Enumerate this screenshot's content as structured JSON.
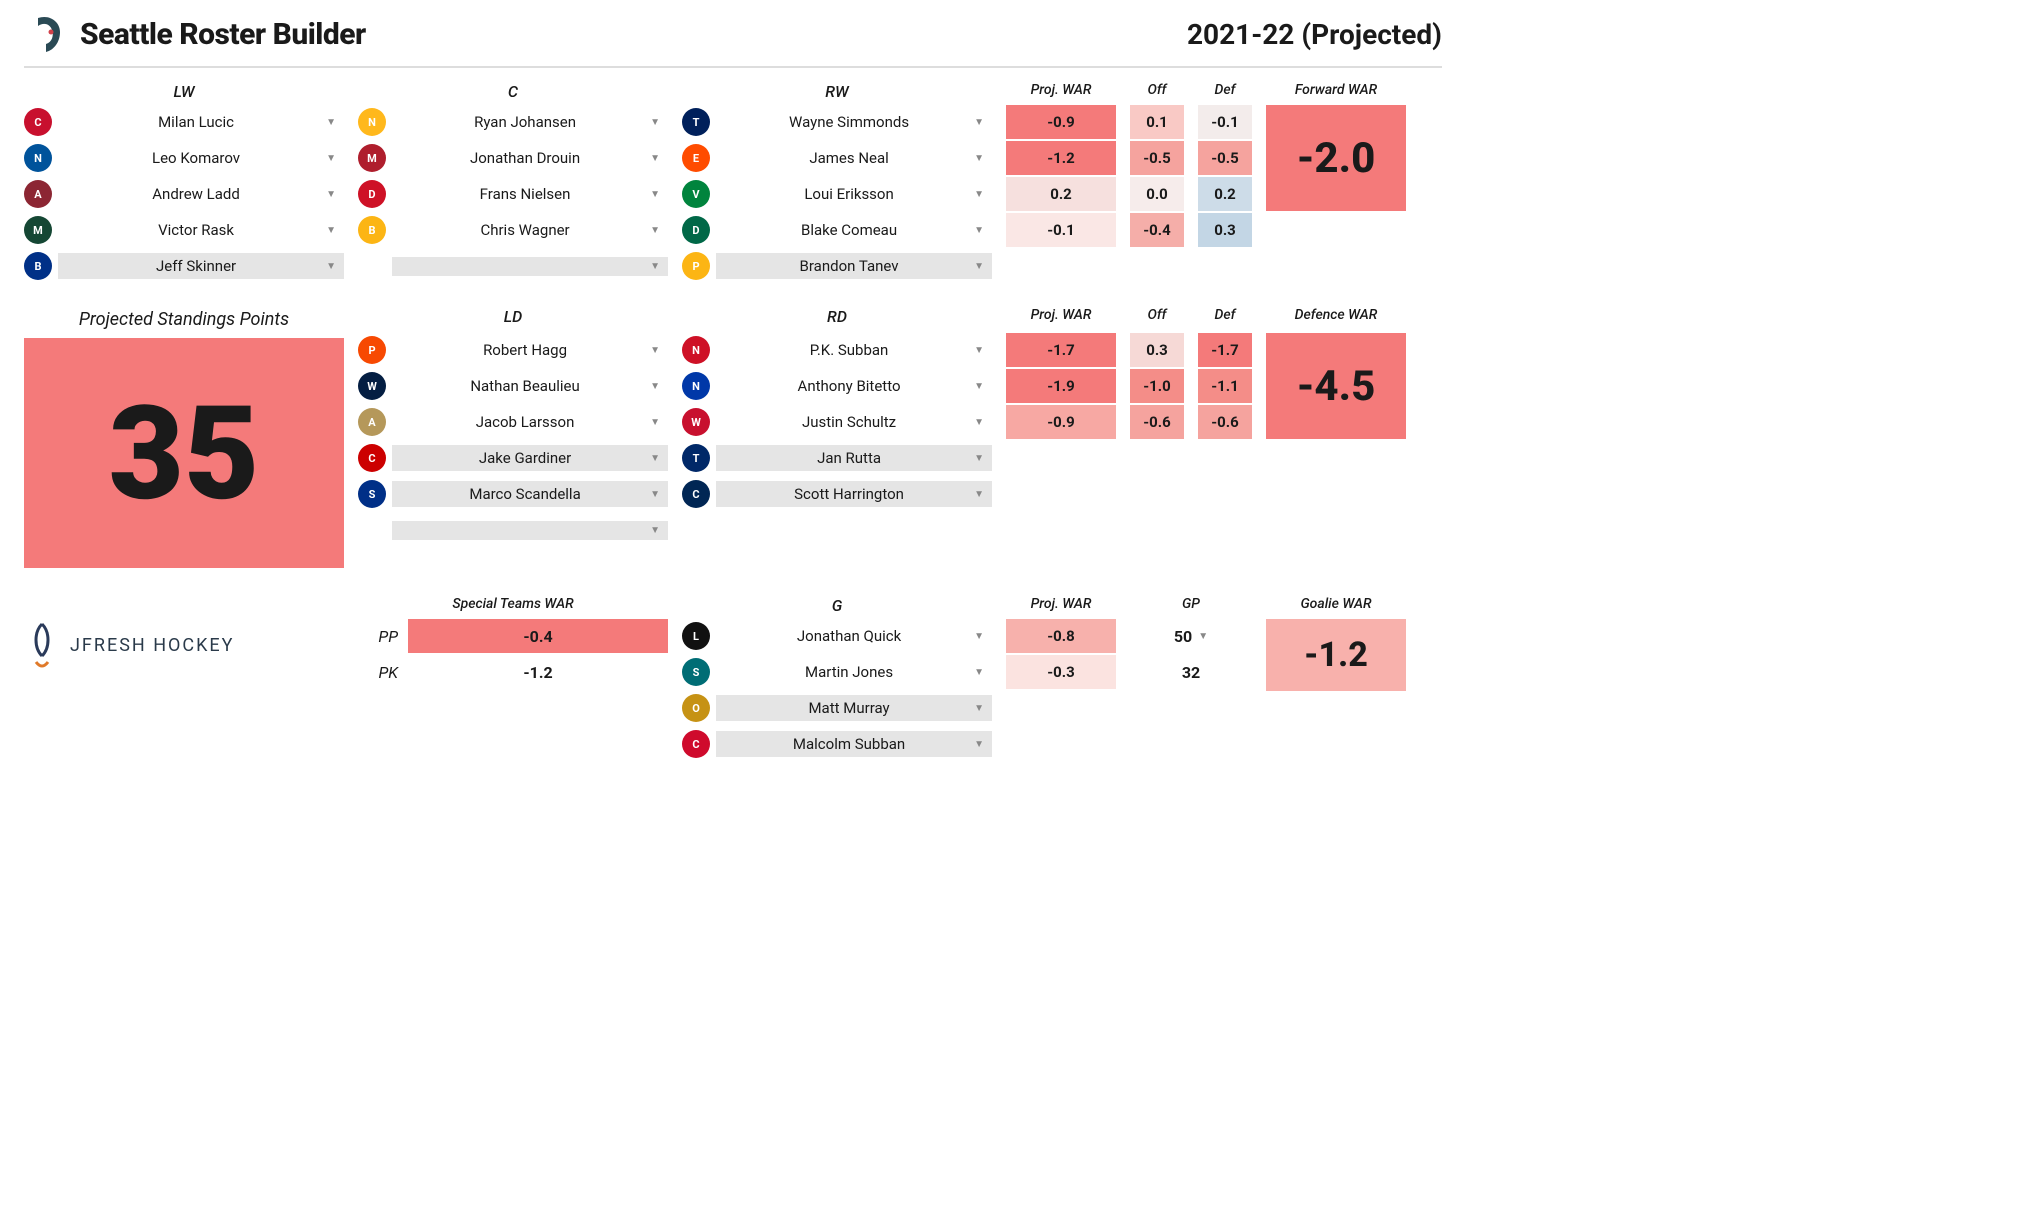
{
  "header": {
    "title": "Seattle Roster Builder",
    "season": "2021-22 (Projected)",
    "team_logo_color": "#5a9aa0"
  },
  "columns": {
    "lw": "LW",
    "c": "C",
    "rw": "RW",
    "ld": "LD",
    "rd": "RD",
    "g": "G",
    "proj_war": "Proj. WAR",
    "off": "Off",
    "def": "Def",
    "forward_war": "Forward WAR",
    "defence_war": "Defence WAR",
    "goalie_war": "Goalie WAR",
    "special_teams": "Special Teams WAR",
    "gp": "GP"
  },
  "forwards": {
    "lw": [
      {
        "name": "Milan Lucic",
        "team_color": "#c8102e",
        "team_txt": "CGY",
        "active": true
      },
      {
        "name": "Leo Komarov",
        "team_color": "#00539b",
        "team_txt": "NYI",
        "active": true
      },
      {
        "name": "Andrew Ladd",
        "team_color": "#8c2633",
        "team_txt": "ARI",
        "active": true
      },
      {
        "name": "Victor Rask",
        "team_color": "#154734",
        "team_txt": "MIN",
        "active": true
      },
      {
        "name": "Jeff Skinner",
        "team_color": "#003087",
        "team_txt": "BUF",
        "active": false
      }
    ],
    "c": [
      {
        "name": "Ryan Johansen",
        "team_color": "#ffb81c",
        "team_txt": "NSH",
        "active": true
      },
      {
        "name": "Jonathan Drouin",
        "team_color": "#af1e2d",
        "team_txt": "MTL",
        "active": true
      },
      {
        "name": "Frans Nielsen",
        "team_color": "#ce1126",
        "team_txt": "DET",
        "active": true
      },
      {
        "name": "Chris Wagner",
        "team_color": "#fcb514",
        "team_txt": "BOS",
        "active": true
      },
      {
        "name": "",
        "team_color": "",
        "team_txt": "",
        "active": false
      }
    ],
    "rw": [
      {
        "name": "Wayne Simmonds",
        "team_color": "#00205b",
        "team_txt": "TOR",
        "active": true
      },
      {
        "name": "James Neal",
        "team_color": "#ff4c00",
        "team_txt": "EDM",
        "active": true
      },
      {
        "name": "Loui Eriksson",
        "team_color": "#00843d",
        "team_txt": "VAN",
        "active": true
      },
      {
        "name": "Blake Comeau",
        "team_color": "#006847",
        "team_txt": "DAL",
        "active": true
      },
      {
        "name": "Brandon Tanev",
        "team_color": "#fcb514",
        "team_txt": "PIT",
        "active": false
      }
    ],
    "stats": [
      {
        "proj_war": "-0.9",
        "proj_bg": "#f47a7a",
        "off": "0.1",
        "off_bg": "#f9c9c5",
        "def": "-0.1",
        "def_bg": "#f3eceb"
      },
      {
        "proj_war": "-1.2",
        "proj_bg": "#f47a7a",
        "off": "-0.5",
        "off_bg": "#f5a39e",
        "def": "-0.5",
        "def_bg": "#f5a39e"
      },
      {
        "proj_war": "0.2",
        "proj_bg": "#f6e0de",
        "off": "0.0",
        "off_bg": "#f6eceb",
        "def": "0.2",
        "def_bg": "#cddce8"
      },
      {
        "proj_war": "-0.1",
        "proj_bg": "#fae7e5",
        "off": "-0.4",
        "off_bg": "#f5aea9",
        "def": "0.3",
        "def_bg": "#c3d6e5"
      }
    ],
    "total_war": "-2.0",
    "total_bg": "#f47a7a"
  },
  "standings": {
    "label": "Projected Standings Points",
    "value": "35",
    "bg": "#f47a7a"
  },
  "defence": {
    "ld": [
      {
        "name": "Robert Hagg",
        "team_color": "#f74902",
        "team_txt": "PHI",
        "active": true
      },
      {
        "name": "Nathan Beaulieu",
        "team_color": "#041e42",
        "team_txt": "WPG",
        "active": true
      },
      {
        "name": "Jacob Larsson",
        "team_color": "#b5985a",
        "team_txt": "ANA",
        "active": true
      },
      {
        "name": "Jake Gardiner",
        "team_color": "#cc0000",
        "team_txt": "CAR",
        "active": false
      },
      {
        "name": "Marco Scandella",
        "team_color": "#002f87",
        "team_txt": "STL",
        "active": false
      },
      {
        "name": "",
        "team_color": "",
        "team_txt": "",
        "active": false
      }
    ],
    "rd": [
      {
        "name": "P.K. Subban",
        "team_color": "#ce1126",
        "team_txt": "NJD",
        "active": true
      },
      {
        "name": "Anthony Bitetto",
        "team_color": "#0038a8",
        "team_txt": "NYR",
        "active": true
      },
      {
        "name": "Justin Schultz",
        "team_color": "#c8102e",
        "team_txt": "WSH",
        "active": true
      },
      {
        "name": "Jan Rutta",
        "team_color": "#002868",
        "team_txt": "TBL",
        "active": false
      },
      {
        "name": "Scott Harrington",
        "team_color": "#002654",
        "team_txt": "CBJ",
        "active": false
      }
    ],
    "stats": [
      {
        "proj_war": "-1.7",
        "proj_bg": "#f47a7a",
        "off": "0.3",
        "off_bg": "#f6d9d6",
        "def": "-1.7",
        "def_bg": "#f47a7a"
      },
      {
        "proj_war": "-1.9",
        "proj_bg": "#f47a7a",
        "off": "-1.0",
        "off_bg": "#f48d88",
        "def": "-1.1",
        "def_bg": "#f48d88"
      },
      {
        "proj_war": "-0.9",
        "proj_bg": "#f7a8a3",
        "off": "-0.6",
        "off_bg": "#f5a39e",
        "def": "-0.6",
        "def_bg": "#f5a39e"
      }
    ],
    "total_war": "-4.5",
    "total_bg": "#f47a7a"
  },
  "special_teams": {
    "pp_label": "PP",
    "pp_val": "-0.4",
    "pp_bg": "#f47a7a",
    "pk_label": "PK",
    "pk_val": "-1.2",
    "pk_bg": "#ffffff"
  },
  "goalies": {
    "list": [
      {
        "name": "Jonathan Quick",
        "team_color": "#111111",
        "team_txt": "LAK",
        "active": true,
        "proj_war": "-0.8",
        "proj_bg": "#f7b1ac",
        "gp": "50",
        "gp_dd": true
      },
      {
        "name": "Martin Jones",
        "team_color": "#006d75",
        "team_txt": "SJS",
        "active": true,
        "proj_war": "-0.3",
        "proj_bg": "#fbe3e0",
        "gp": "32",
        "gp_dd": false
      },
      {
        "name": "Matt Murray",
        "team_color": "#c69214",
        "team_txt": "OTT",
        "active": false
      },
      {
        "name": "Malcolm Subban",
        "team_color": "#cf0a2c",
        "team_txt": "CHI",
        "active": false
      }
    ],
    "total_war": "-1.2",
    "total_bg": "#f8b1ac"
  },
  "brand": "JFRESH HOCKEY"
}
